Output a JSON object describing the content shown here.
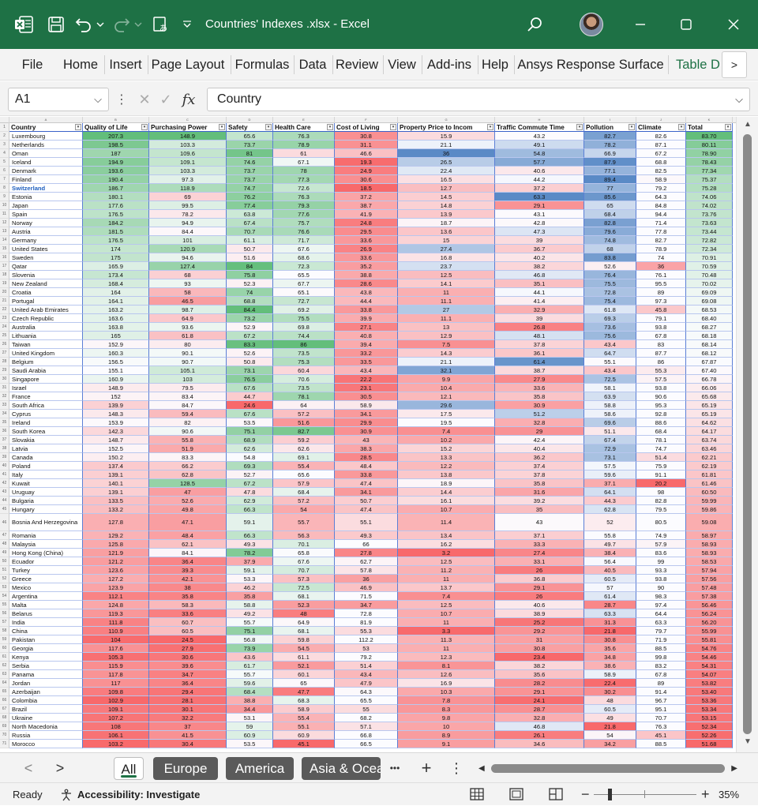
{
  "window": {
    "title": "Countries' Indexes .xlsx  -  Excel"
  },
  "menu": [
    "File",
    "Home",
    "Insert",
    "Page Layout",
    "Formulas",
    "Data",
    "Review",
    "View",
    "Add-ins",
    "Help",
    "Ansys Response Surface",
    "Table D"
  ],
  "menu_more": ">",
  "formula_bar": {
    "cell_ref": "A1",
    "fx_label": "fx",
    "content": "Country"
  },
  "column_letters": [
    "A",
    "B",
    "C",
    "D",
    "E",
    "F",
    "G",
    "H",
    "I",
    "J",
    "K"
  ],
  "table": {
    "headers": [
      "Country",
      "Quality of Life",
      "Purchasing Power",
      "Safety",
      "Health Care",
      "Cost of Living",
      "Property Price to Incom",
      "Traffic Commute Time",
      "Pollution",
      "Climate",
      "Total"
    ],
    "rows": [
      [
        "Luxembourg",
        "207.3",
        "148.9",
        "65.6",
        "76.3",
        "30.8",
        "15.9",
        "43.2",
        "82.7",
        "82.6",
        "83.70"
      ],
      [
        "Netherlands",
        "198.5",
        "103.3",
        "73.7",
        "78.9",
        "31.1",
        "21.1",
        "49.1",
        "78.2",
        "87.1",
        "80.11"
      ],
      [
        "Oman",
        "187",
        "109.6",
        "81",
        "61",
        "46.6",
        "36",
        "54.8",
        "66.9",
        "67.2",
        "78.90"
      ],
      [
        "Iceland",
        "194.9",
        "109.1",
        "74.6",
        "67.1",
        "19.3",
        "26.5",
        "57.7",
        "87.9",
        "68.8",
        "78.43"
      ],
      [
        "Denmark",
        "193.6",
        "103.3",
        "73.7",
        "78",
        "24.9",
        "22.4",
        "40.6",
        "77.1",
        "82.5",
        "77.34"
      ],
      [
        "Finland",
        "190.4",
        "97.3",
        "73.7",
        "77.3",
        "30.6",
        "16.5",
        "44.2",
        "89.4",
        "58.9",
        "75.37"
      ],
      [
        "Switzerland",
        "186.7",
        "118.9",
        "74.7",
        "72.6",
        "18.5",
        "12.7",
        "37.2",
        "77",
        "79.2",
        "75.28"
      ],
      [
        "Estonia",
        "180.1",
        "69",
        "76.2",
        "76.3",
        "37.2",
        "14.5",
        "63.3",
        "85.6",
        "64.3",
        "74.06"
      ],
      [
        "Japan",
        "177.6",
        "99.5",
        "77.4",
        "79.3",
        "38.7",
        "14.8",
        "29.1",
        "65",
        "84.8",
        "74.02"
      ],
      [
        "Spain",
        "176.5",
        "78.2",
        "63.8",
        "77.6",
        "41.9",
        "13.9",
        "43.1",
        "68.4",
        "94.4",
        "73.76"
      ],
      [
        "Norway",
        "184.2",
        "94.9",
        "67.4",
        "75.7",
        "24.8",
        "18.7",
        "42.8",
        "82.8",
        "71.4",
        "73.63"
      ],
      [
        "Austria",
        "181.5",
        "84.4",
        "70.7",
        "76.6",
        "29.5",
        "13.6",
        "47.3",
        "79.6",
        "77.8",
        "73.44"
      ],
      [
        "Germany",
        "176.5",
        "101",
        "61.1",
        "71.7",
        "33.6",
        "15",
        "39",
        "74.8",
        "82.7",
        "72.82"
      ],
      [
        "United States",
        "174",
        "120.9",
        "50.7",
        "67.6",
        "26.9",
        "27.4",
        "36.7",
        "68",
        "78.9",
        "72.34"
      ],
      [
        "Sweden",
        "175",
        "94.6",
        "51.6",
        "68.6",
        "33.6",
        "16.8",
        "40.2",
        "83.8",
        "74",
        "70.91"
      ],
      [
        "Qatar",
        "165.9",
        "127.4",
        "84",
        "72.3",
        "35.2",
        "23.7",
        "38.2",
        "52.6",
        "36",
        "70.59"
      ],
      [
        "Slovenia",
        "173.4",
        "68",
        "75.8",
        "65.5",
        "38.8",
        "12.5",
        "46.8",
        "76.4",
        "76.1",
        "70.48"
      ],
      [
        "New Zealand",
        "168.4",
        "93",
        "52.3",
        "67.7",
        "28.6",
        "14.1",
        "35.1",
        "75.5",
        "95.5",
        "70.02"
      ],
      [
        "Croatia",
        "164",
        "58",
        "74",
        "65.1",
        "43.8",
        "11",
        "44.1",
        "72.8",
        "89",
        "69.09"
      ],
      [
        "Portugal",
        "164.1",
        "46.5",
        "68.8",
        "72.7",
        "44.4",
        "11.1",
        "41.4",
        "75.4",
        "97.3",
        "69.08"
      ],
      [
        "United Arab Emirates",
        "163.2",
        "98.7",
        "84.4",
        "69.2",
        "33.8",
        "27",
        "32.9",
        "61.8",
        "45.8",
        "68.53"
      ],
      [
        "Czech Republic",
        "163.6",
        "64.9",
        "73.2",
        "75.5",
        "39.9",
        "11.1",
        "39",
        "69.3",
        "79.1",
        "68.40"
      ],
      [
        "Australia",
        "163.8",
        "93.6",
        "52.9",
        "69.8",
        "27.1",
        "13",
        "26.8",
        "73.6",
        "93.8",
        "68.27"
      ],
      [
        "Lithuania",
        "165",
        "61.8",
        "67.2",
        "74.4",
        "40.8",
        "12.9",
        "48.1",
        "75.6",
        "67.8",
        "68.18"
      ],
      [
        "Taiwan",
        "152.9",
        "80",
        "83.3",
        "86",
        "39.4",
        "7.5",
        "37.8",
        "43.4",
        "83",
        "68.14"
      ],
      [
        "United Kingdom",
        "160.3",
        "90.1",
        "52.6",
        "73.5",
        "33.2",
        "14.3",
        "36.1",
        "64.7",
        "87.7",
        "68.12"
      ],
      [
        "Belgium",
        "156.5",
        "90.7",
        "50.8",
        "75.3",
        "33.5",
        "21.1",
        "61.4",
        "55.1",
        "86",
        "67.87"
      ],
      [
        "Saudi Arabia",
        "155.1",
        "105.1",
        "73.1",
        "60.4",
        "43.4",
        "32.1",
        "38.7",
        "43.4",
        "55.3",
        "67.40"
      ],
      [
        "Singapore",
        "160.9",
        "103",
        "76.5",
        "70.6",
        "22.2",
        "9.9",
        "27.9",
        "72.5",
        "57.5",
        "66.78"
      ],
      [
        "Israel",
        "148.9",
        "79.5",
        "67.6",
        "73.5",
        "23.1",
        "10.4",
        "33.6",
        "58.1",
        "93.8",
        "66.06"
      ],
      [
        "France",
        "152",
        "83.4",
        "44.7",
        "78.1",
        "30.5",
        "12.1",
        "35.8",
        "63.9",
        "90.6",
        "65.68"
      ],
      [
        "South Africa",
        "139.9",
        "84.7",
        "24.6",
        "64",
        "58.9",
        "29.6",
        "30.9",
        "58.8",
        "95.3",
        "65.19"
      ],
      [
        "Cyprus",
        "148.3",
        "59.4",
        "67.6",
        "57.2",
        "34.1",
        "17.5",
        "51.2",
        "58.6",
        "92.8",
        "65.19"
      ],
      [
        "Ireland",
        "153.9",
        "82",
        "53.5",
        "51.6",
        "29.9",
        "19.5",
        "32.8",
        "69.6",
        "88.6",
        "64.62"
      ],
      [
        "South Korea",
        "142.3",
        "90.6",
        "75.1",
        "82.7",
        "30.9",
        "7.4",
        "29",
        "51.1",
        "68.4",
        "64.17"
      ],
      [
        "Slovakia",
        "148.7",
        "55.8",
        "68.9",
        "59.2",
        "43",
        "10.2",
        "42.4",
        "67.4",
        "78.1",
        "63.74"
      ],
      [
        "Latvia",
        "152.5",
        "51.9",
        "62.6",
        "62.6",
        "38.3",
        "15.2",
        "40.4",
        "72.9",
        "74.7",
        "63.46"
      ],
      [
        "Canada",
        "150.2",
        "83.3",
        "54.8",
        "69.1",
        "28.5",
        "13.3",
        "36.2",
        "73.1",
        "51.4",
        "62.21"
      ],
      [
        "Poland",
        "137.4",
        "66.2",
        "69.3",
        "55.4",
        "48.4",
        "12.2",
        "37.4",
        "57.5",
        "75.9",
        "62.19"
      ],
      [
        "Italy",
        "139.1",
        "62.8",
        "52.7",
        "65.6",
        "33.8",
        "13.8",
        "37.8",
        "59.6",
        "91.1",
        "61.81"
      ],
      [
        "Kuwait",
        "140.1",
        "128.5",
        "67.2",
        "57.9",
        "47.4",
        "18.9",
        "35.8",
        "37.1",
        "20.2",
        "61.46"
      ],
      [
        "Uruguay",
        "139.1",
        "47",
        "47.8",
        "68.4",
        "34.1",
        "14.4",
        "31.6",
        "64.1",
        "98",
        "60.50"
      ],
      [
        "Bulgaria",
        "133.5",
        "52.6",
        "62.9",
        "57.2",
        "50.7",
        "16.1",
        "39.2",
        "44.3",
        "82.8",
        "59.99"
      ],
      [
        "Hungary",
        "133.2",
        "49.8",
        "66.3",
        "54",
        "47.4",
        "10.7",
        "35",
        "62.8",
        "79.5",
        "59.86"
      ],
      [
        "Bosnia And Herzegovina",
        "127.8",
        "47.1",
        "59.1",
        "55.7",
        "55.1",
        "11.4",
        "43",
        "52",
        "80.5",
        "59.08"
      ],
      [
        "Romania",
        "129.2",
        "48.4",
        "66.3",
        "56.3",
        "49.3",
        "13.4",
        "37.1",
        "55.8",
        "74.9",
        "58.97"
      ],
      [
        "Malaysia",
        "125.8",
        "62.1",
        "49.3",
        "70.1",
        "66",
        "16.2",
        "33.3",
        "49.7",
        "57.9",
        "58.93"
      ],
      [
        "Hong Kong (China)",
        "121.9",
        "84.1",
        "78.2",
        "65.8",
        "27.8",
        "3.2",
        "27.4",
        "38.4",
        "83.6",
        "58.93"
      ],
      [
        "Ecuador",
        "121.2",
        "36.4",
        "37.9",
        "67.6",
        "62.7",
        "12.5",
        "33.1",
        "56.4",
        "99",
        "58.53"
      ],
      [
        "Turkey",
        "123.6",
        "39.3",
        "59.1",
        "70.7",
        "57.8",
        "11.2",
        "26",
        "40.5",
        "93.3",
        "57.94"
      ],
      [
        "Greece",
        "127.2",
        "42.1",
        "53.3",
        "57.3",
        "36",
        "11",
        "36.8",
        "60.5",
        "93.8",
        "57.56"
      ],
      [
        "Mexico",
        "123.9",
        "38",
        "46.2",
        "72.5",
        "46.9",
        "13.7",
        "29.1",
        "57",
        "90",
        "57.48"
      ],
      [
        "Argentina",
        "112.1",
        "35.8",
        "35.8",
        "68.1",
        "71.5",
        "7.4",
        "26",
        "61.4",
        "98.3",
        "57.38"
      ],
      [
        "Malta",
        "124.8",
        "58.3",
        "58.8",
        "52.3",
        "34.7",
        "12.5",
        "40.6",
        "28.7",
        "97.4",
        "56.46"
      ],
      [
        "Belarus",
        "119.3",
        "33.6",
        "49.2",
        "48",
        "72.8",
        "10.7",
        "38.9",
        "63.3",
        "64.4",
        "56.24"
      ],
      [
        "India",
        "111.8",
        "60.7",
        "55.7",
        "64.9",
        "81.9",
        "11",
        "25.2",
        "31.3",
        "63.3",
        "56.20"
      ],
      [
        "China",
        "110.9",
        "60.5",
        "75.1",
        "68.1",
        "55.3",
        "3.3",
        "29.2",
        "21.8",
        "79.7",
        "55.99"
      ],
      [
        "Pakistan",
        "104",
        "24.5",
        "56.8",
        "59.8",
        "112.2",
        "11.3",
        "31",
        "30.8",
        "71.9",
        "55.81"
      ],
      [
        "Georgia",
        "117.6",
        "27.9",
        "73.9",
        "54.5",
        "53",
        "11",
        "30.8",
        "35.6",
        "88.5",
        "54.76"
      ],
      [
        "Kenya",
        "105.3",
        "30.6",
        "43.6",
        "61.1",
        "79.2",
        "12.3",
        "23.4",
        "34.8",
        "99.8",
        "54.46"
      ],
      [
        "Serbia",
        "115.9",
        "39.6",
        "61.7",
        "52.1",
        "51.4",
        "8.1",
        "38.2",
        "38.6",
        "83.2",
        "54.31"
      ],
      [
        "Panama",
        "117.8",
        "34.7",
        "55.7",
        "60.1",
        "43.4",
        "12.6",
        "35.6",
        "58.9",
        "67.8",
        "54.07"
      ],
      [
        "Jordan",
        "117",
        "36.4",
        "59.6",
        "65",
        "47.9",
        "16.9",
        "28.2",
        "22.4",
        "89",
        "53.82"
      ],
      [
        "Azerbaijan",
        "109.8",
        "29.4",
        "68.4",
        "47.7",
        "64.3",
        "10.3",
        "29.1",
        "30.2",
        "91.4",
        "53.40"
      ],
      [
        "Colombia",
        "102.9",
        "28.1",
        "38.8",
        "68.3",
        "65.5",
        "7.8",
        "24.1",
        "48",
        "96.7",
        "53.36"
      ],
      [
        "Brazil",
        "109.1",
        "30.1",
        "34.4",
        "58.9",
        "55",
        "8.3",
        "28.7",
        "60.5",
        "95.1",
        "53.34"
      ],
      [
        "Ukraine",
        "107.2",
        "32.2",
        "53.1",
        "55.4",
        "68.2",
        "9.8",
        "32.8",
        "49",
        "70.7",
        "53.15"
      ],
      [
        "North Macedonia",
        "108",
        "37",
        "59",
        "55.1",
        "57.1",
        "10",
        "46.8",
        "21.8",
        "76.3",
        "52.34"
      ],
      [
        "Russia",
        "106.1",
        "41.5",
        "60.9",
        "60.9",
        "66.8",
        "8.9",
        "26.1",
        "54",
        "45.1",
        "52.26"
      ],
      [
        "Morocco",
        "103.2",
        "30.4",
        "53.5",
        "45.1",
        "66.5",
        "9.1",
        "34.6",
        "34.2",
        "88.5",
        "51.68"
      ]
    ]
  },
  "sheets": {
    "tabs": [
      "All",
      "Europe",
      "America",
      "Asia & Oceania"
    ],
    "active": "All",
    "more": "•••",
    "add": "+",
    "menu": "⋮",
    "prev": "<",
    "next": ">"
  },
  "status": {
    "ready": "Ready",
    "accessibility": "Accessibility: Investigate",
    "zoom_minus": "−",
    "zoom_plus": "+",
    "zoom": "35%"
  },
  "colors": {
    "title_green": "#1e7145",
    "scale_green": "#63be7b",
    "scale_red": "#f8696b",
    "scale_blue": "#5a8ac6"
  }
}
